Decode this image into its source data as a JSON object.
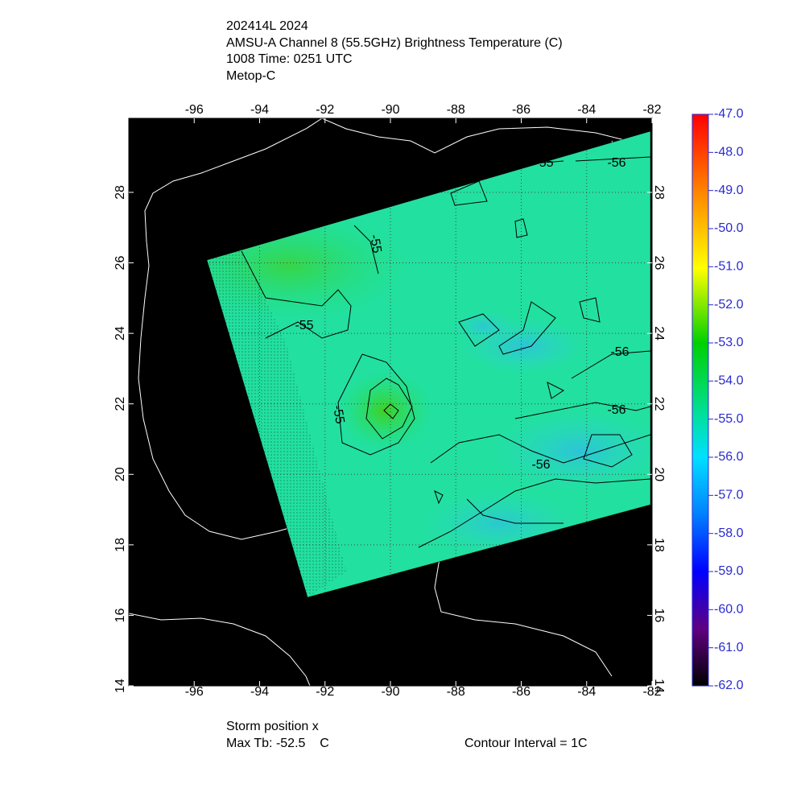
{
  "header": {
    "lines": [
      "202414L 2024",
      "AMSU-A Channel 8 (55.5GHz) Brightness Temperature (C)",
      "1008 Time: 0251 UTC",
      "Metop-C"
    ]
  },
  "map": {
    "xlim": [
      -98,
      -82
    ],
    "ylim": [
      14,
      30.1
    ],
    "xticks": [
      -96,
      -94,
      -92,
      -90,
      -88,
      -86,
      -84,
      -82
    ],
    "yticks": [
      14,
      16,
      18,
      20,
      22,
      24,
      26,
      28
    ],
    "contour_labels": [
      -55,
      -56,
      -55,
      -55,
      -56,
      -55,
      -56,
      -56
    ]
  },
  "colorbar": {
    "lim": [
      -62,
      -47
    ],
    "ticks": [
      {
        "value": -47,
        "label": "-47.0"
      },
      {
        "value": -48,
        "label": "-48.0"
      },
      {
        "value": -49,
        "label": "-49.0"
      },
      {
        "value": -50,
        "label": "-50.0"
      },
      {
        "value": -51,
        "label": "-51.0"
      },
      {
        "value": -52,
        "label": "-52.0"
      },
      {
        "value": -53,
        "label": "-53.0"
      },
      {
        "value": -54,
        "label": "-54.0"
      },
      {
        "value": -55,
        "label": "-55.0"
      },
      {
        "value": -56,
        "label": "-56.0"
      },
      {
        "value": -57,
        "label": "-57.0"
      },
      {
        "value": -58,
        "label": "-58.0"
      },
      {
        "value": -59,
        "label": "-59.0"
      },
      {
        "value": -60,
        "label": "-60.0"
      },
      {
        "value": -61,
        "label": "-61.0"
      },
      {
        "value": -62,
        "label": "-62.0"
      }
    ]
  },
  "footer": {
    "storm": "Storm position x",
    "max_tb": "Max Tb: -52.5    C",
    "interval": "Contour Interval = 1C"
  }
}
